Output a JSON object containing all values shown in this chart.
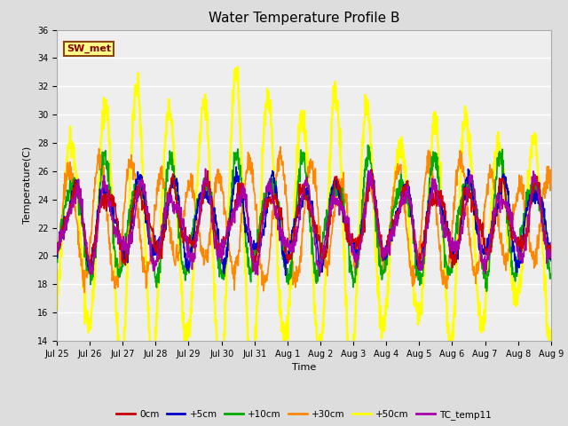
{
  "title": "Water Temperature Profile B",
  "xlabel": "Time",
  "ylabel": "Temperature(C)",
  "ylim": [
    14,
    36
  ],
  "bg_color": "#dddddd",
  "plot_bg_color": "#eeeeee",
  "annotation_text": "SW_met",
  "annotation_color": "#8b0000",
  "annotation_bg": "#ffff88",
  "annotation_border": "#8b4513",
  "xtick_labels": [
    "Jul 25",
    "Jul 26",
    "Jul 27",
    "Jul 28",
    "Jul 29",
    "Jul 30",
    "Jul 31",
    "Aug 1",
    "Aug 2",
    "Aug 3",
    "Aug 4",
    "Aug 5",
    "Aug 6",
    "Aug 7",
    "Aug 8",
    "Aug 9"
  ],
  "series": {
    "0cm": {
      "color": "#cc0000",
      "lw": 1.2
    },
    "+5cm": {
      "color": "#0000cc",
      "lw": 1.2
    },
    "+10cm": {
      "color": "#00aa00",
      "lw": 1.2
    },
    "+30cm": {
      "color": "#ff8800",
      "lw": 1.2
    },
    "+50cm": {
      "color": "#ffff00",
      "lw": 1.8
    },
    "TC_temp11": {
      "color": "#aa00aa",
      "lw": 1.2
    }
  },
  "yticks": [
    14,
    16,
    18,
    20,
    22,
    24,
    26,
    28,
    30,
    32,
    34,
    36
  ],
  "title_fontsize": 11,
  "label_fontsize": 8,
  "tick_fontsize": 7
}
